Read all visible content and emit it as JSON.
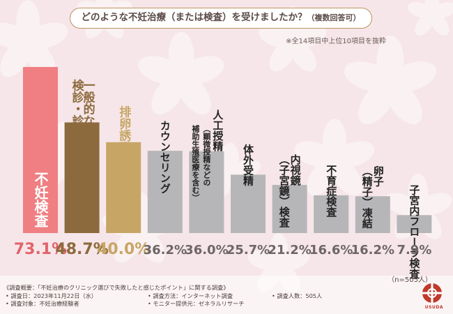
{
  "title": "どのような不妊治療（または検査）を受けましたか？",
  "title_suffix": "（複数回答可）",
  "note": "※全14項目中上位10項目を抜粋",
  "n_label": "（n=505人）",
  "footer": {
    "line1": "《調査概要：「不妊治療のクリニック選びで失敗したと感じたポイント」に関する調査》",
    "date": "• 調査日：2023年11月22日（水）",
    "method": "• 調査方法：インターネット調査",
    "count": "• 調査人数：505人",
    "target": "• 調査対象：不妊治療経験者",
    "provider": "• モニター提供元：ゼネラルリサーチ"
  },
  "logo_text": "USUDA",
  "colors": {
    "rank1": "#ef7f82",
    "rank2": "#8c6a3d",
    "rank3": "#c7a665",
    "other": "#b6b6b8",
    "value_rank1": "#e0646c",
    "value_rank2": "#8c6a3d",
    "value_rank3": "#c7a665",
    "value_other": "#6e6666"
  },
  "chart_data": {
    "type": "bar",
    "categories": [
      "不妊検査",
      "一般的な婦人科検診・診療",
      "排卵誘発剤などの服用",
      "カウンセリング",
      "人工授精（顕微授精などの補助生殖医療を含む）",
      "体外受精",
      "内視鏡（子宮鏡）検査",
      "不育症検査",
      "卵子（精子）凍結",
      "子宮内フローラ検査"
    ],
    "values": [
      73.1,
      48.7,
      40.0,
      36.2,
      36.0,
      25.7,
      21.2,
      16.6,
      16.2,
      7.9
    ],
    "value_labels": [
      "73.1%",
      "48.7%",
      "40.0%",
      "36.2%",
      "36.0%",
      "25.7%",
      "21.2%",
      "16.6%",
      "16.2%",
      "7.9%"
    ],
    "unit": "%",
    "ylim": [
      0,
      73.1
    ],
    "grid": false,
    "legend": "none"
  }
}
